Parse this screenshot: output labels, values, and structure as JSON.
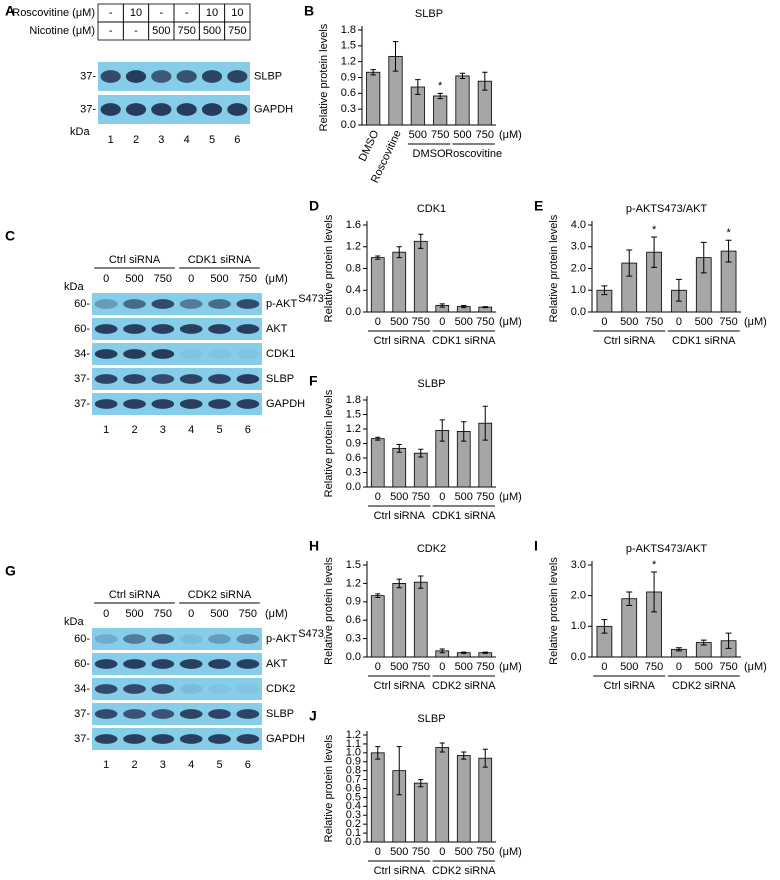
{
  "chart_data": [
    {
      "type": "bar",
      "panel": "B",
      "title": "SLBP",
      "ylabel": "Relative protein levels",
      "categories": [
        "DMSO",
        "Roscovitine",
        "500",
        "750",
        "500",
        "750"
      ],
      "groups": [
        null,
        "DMSO",
        "Roscovitine"
      ],
      "unit_label": "(μM)",
      "values": [
        1.0,
        1.3,
        0.72,
        0.55,
        0.93,
        0.83
      ],
      "errors": [
        0.05,
        0.28,
        0.14,
        0.05,
        0.05,
        0.17
      ],
      "annotations": [
        null,
        null,
        null,
        "*",
        null,
        null
      ],
      "color": "#a6a6a6",
      "ylim": [
        0,
        1.8
      ],
      "yticks": [
        {
          "value": 0,
          "label": "0.0"
        },
        0.3,
        0.6,
        0.9,
        1.2,
        1.5,
        1.8
      ]
    },
    {
      "type": "bar",
      "panel": "D",
      "title": "CDK1",
      "ylabel": "Relative protein levels",
      "categories": [
        "0",
        "500",
        "750",
        "0",
        "500",
        "750"
      ],
      "groups": [
        "Ctrl siRNA",
        "CDK1 siRNA"
      ],
      "unit_label": "(μM)",
      "values": [
        1.0,
        1.1,
        1.3,
        0.12,
        0.1,
        0.09
      ],
      "errors": [
        0.03,
        0.1,
        0.13,
        0.03,
        0.02,
        0.01
      ],
      "annotations": [
        null,
        null,
        null,
        null,
        null,
        null
      ],
      "color": "#a6a6a6",
      "ylim": [
        0,
        1.6
      ],
      "yticks": [
        {
          "value": 0,
          "label": "0.0"
        },
        0.4,
        0.8,
        1.2,
        1.6
      ]
    },
    {
      "type": "bar",
      "panel": "E",
      "title": "p-AKTS473/AKT",
      "ylabel": "Relative protein levels",
      "categories": [
        "0",
        "500",
        "750",
        "0",
        "500",
        "750"
      ],
      "groups": [
        "Ctrl siRNA",
        "CDK1 siRNA"
      ],
      "unit_label": "(μM)",
      "values": [
        1.0,
        2.25,
        2.75,
        1.0,
        2.5,
        2.8
      ],
      "errors": [
        0.2,
        0.6,
        0.7,
        0.5,
        0.7,
        0.5
      ],
      "annotations": [
        null,
        null,
        "*",
        null,
        null,
        "*"
      ],
      "color": "#a6a6a6",
      "ylim": [
        0,
        4
      ],
      "yticks": [
        {
          "value": 0,
          "label": "0.0"
        },
        {
          "value": 1,
          "label": "1.0"
        },
        {
          "value": 2,
          "label": "2.0"
        },
        {
          "value": 3,
          "label": "3.0"
        },
        {
          "value": 4,
          "label": "4.0"
        }
      ]
    },
    {
      "type": "bar",
      "panel": "F",
      "title": "SLBP",
      "ylabel": "Relative protein levels",
      "categories": [
        "0",
        "500",
        "750",
        "0",
        "500",
        "750"
      ],
      "groups": [
        "Ctrl siRNA",
        "CDK1 siRNA"
      ],
      "unit_label": "(μM)",
      "values": [
        1.0,
        0.8,
        0.7,
        1.17,
        1.15,
        1.32
      ],
      "errors": [
        0.03,
        0.08,
        0.08,
        0.22,
        0.2,
        0.35
      ],
      "annotations": [
        null,
        null,
        null,
        null,
        null,
        null
      ],
      "color": "#a6a6a6",
      "ylim": [
        0,
        1.8
      ],
      "yticks": [
        {
          "value": 0,
          "label": "0.0"
        },
        0.3,
        0.6,
        0.9,
        1.2,
        1.5,
        1.8
      ]
    },
    {
      "type": "bar",
      "panel": "H",
      "title": "CDK2",
      "ylabel": "Relative protein levels",
      "categories": [
        "0",
        "500",
        "750",
        "0",
        "500",
        "750"
      ],
      "groups": [
        "Ctrl siRNA",
        "CDK2 siRNA"
      ],
      "unit_label": "(μM)",
      "values": [
        1.0,
        1.2,
        1.22,
        0.1,
        0.07,
        0.07
      ],
      "errors": [
        0.03,
        0.07,
        0.1,
        0.03,
        0.01,
        0.01
      ],
      "annotations": [
        null,
        null,
        null,
        null,
        null,
        null
      ],
      "color": "#a6a6a6",
      "ylim": [
        0,
        1.5
      ],
      "yticks": [
        {
          "value": 0,
          "label": "0.0"
        },
        0.3,
        0.6,
        0.9,
        1.2,
        1.5
      ]
    },
    {
      "type": "bar",
      "panel": "I",
      "title": "p-AKTS473/AKT",
      "ylabel": "Relative protein levels",
      "categories": [
        "0",
        "500",
        "750",
        "0",
        "500",
        "750"
      ],
      "groups": [
        "Ctrl siRNA",
        "CDK2 siRNA"
      ],
      "unit_label": "(μM)",
      "values": [
        1.0,
        1.9,
        2.12,
        0.25,
        0.47,
        0.53
      ],
      "errors": [
        0.22,
        0.22,
        0.65,
        0.05,
        0.08,
        0.25
      ],
      "annotations": [
        null,
        null,
        "*",
        null,
        null,
        null
      ],
      "color": "#a6a6a6",
      "ylim": [
        0,
        3
      ],
      "yticks": [
        {
          "value": 0,
          "label": "0.0"
        },
        {
          "value": 1,
          "label": "1.0"
        },
        {
          "value": 2,
          "label": "2.0"
        },
        {
          "value": 3,
          "label": "3.0"
        }
      ]
    },
    {
      "type": "bar",
      "panel": "J",
      "title": "SLBP",
      "ylabel": "Relative protein levels",
      "categories": [
        "0",
        "500",
        "750",
        "0",
        "500",
        "750"
      ],
      "groups": [
        "Ctrl siRNA",
        "CDK2 siRNA"
      ],
      "unit_label": "(μM)",
      "values": [
        1.0,
        0.8,
        0.66,
        1.06,
        0.97,
        0.94
      ],
      "errors": [
        0.07,
        0.27,
        0.04,
        0.05,
        0.04,
        0.1
      ],
      "annotations": [
        null,
        null,
        null,
        null,
        null,
        null
      ],
      "color": "#a6a6a6",
      "ylim": [
        0,
        1.2
      ],
      "yticks": [
        {
          "value": 0,
          "label": "0.0"
        },
        0.1,
        0.2,
        0.3,
        0.4,
        0.5,
        0.6,
        0.7,
        0.8,
        0.9,
        {
          "value": 1,
          "label": "1.0"
        },
        1.1,
        1.2
      ]
    }
  ],
  "blots": {
    "A": {
      "panel": "A",
      "treatments": [
        {
          "label": "Roscovitine (μM)",
          "cells": [
            "-",
            "10",
            "-",
            "-",
            "10",
            "10"
          ]
        },
        {
          "label": "Nicotine (μM)",
          "cells": [
            "-",
            "-",
            "500",
            "750",
            "500",
            "750"
          ]
        }
      ],
      "rows": [
        {
          "marker": "37-",
          "label": "SLBP"
        },
        {
          "marker": "37-",
          "label": "GAPDH"
        }
      ],
      "kda": "kDa",
      "lanes": [
        "1",
        "2",
        "3",
        "4",
        "5",
        "6"
      ]
    },
    "C": {
      "panel": "C",
      "groups": [
        "Ctrl siRNA",
        "CDK1 siRNA"
      ],
      "doses": [
        "0",
        "500",
        "750",
        "0",
        "500",
        "750"
      ],
      "unit": "(μM)",
      "kda": "kDa",
      "rows": [
        {
          "marker": "60-",
          "label": "p-AKT",
          "sup": "S473"
        },
        {
          "marker": "60-",
          "label": "AKT"
        },
        {
          "marker": "34-",
          "label": "CDK1"
        },
        {
          "marker": "37-",
          "label": "SLBP"
        },
        {
          "marker": "37-",
          "label": "GAPDH"
        }
      ],
      "lanes": [
        "1",
        "2",
        "3",
        "4",
        "5",
        "6"
      ]
    },
    "G": {
      "panel": "G",
      "groups": [
        "Ctrl siRNA",
        "CDK2 siRNA"
      ],
      "doses": [
        "0",
        "500",
        "750",
        "0",
        "500",
        "750"
      ],
      "unit": "(μM)",
      "kda": "kDa",
      "rows": [
        {
          "marker": "60-",
          "label": "p-AKT",
          "sup": "S473"
        },
        {
          "marker": "60-",
          "label": "AKT"
        },
        {
          "marker": "34-",
          "label": "CDK2"
        },
        {
          "marker": "37-",
          "label": "SLBP"
        },
        {
          "marker": "37-",
          "label": "GAPDH"
        }
      ],
      "lanes": [
        "1",
        "2",
        "3",
        "4",
        "5",
        "6"
      ]
    }
  }
}
